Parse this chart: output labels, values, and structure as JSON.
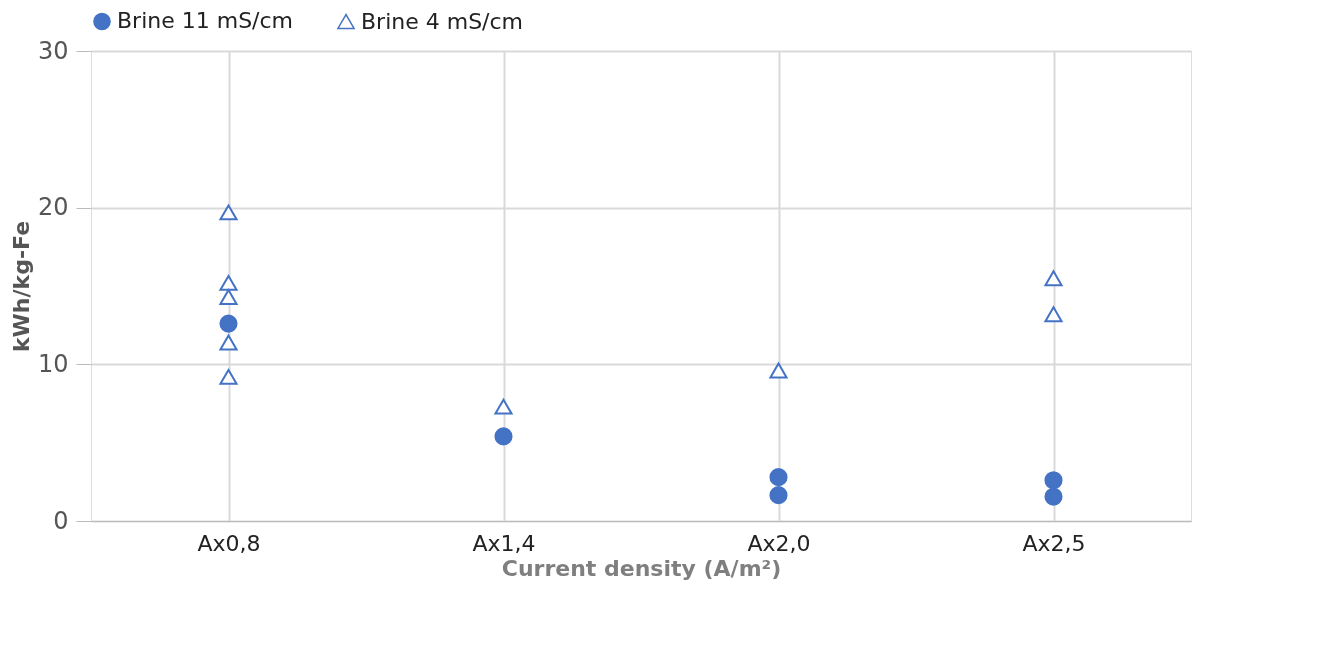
{
  "chart_data": {
    "type": "scatter",
    "xlabel": "Current density (A/m²)",
    "ylabel": "kWh/kg-Fe",
    "categories": [
      "Ax0,8",
      "Ax1,4",
      "Ax2,0",
      "Ax2,5"
    ],
    "ylim": [
      0,
      30
    ],
    "yticks": [
      0,
      10,
      20,
      30
    ],
    "grid": true,
    "legend": "top",
    "series": [
      {
        "name": "Brine 11 mS/cm",
        "color": "#4472c4",
        "marker": "circle",
        "x": [
          "Ax0,8",
          "Ax1,4",
          "Ax2,0",
          "Ax2,0",
          "Ax2,5",
          "Ax2,5"
        ],
        "values": [
          12.6,
          5.4,
          2.8,
          1.65,
          2.6,
          1.55
        ]
      },
      {
        "name": "Brine 4 mS/cm",
        "color": "#4472c4",
        "marker": "triangle",
        "x": [
          "Ax0,8",
          "Ax0,8",
          "Ax0,8",
          "Ax0,8",
          "Ax0,8",
          "Ax1,4",
          "Ax2,0",
          "Ax2,5",
          "Ax2,5"
        ],
        "values": [
          19.7,
          15.2,
          14.3,
          11.4,
          9.2,
          7.3,
          9.6,
          15.5,
          13.2
        ]
      }
    ]
  }
}
